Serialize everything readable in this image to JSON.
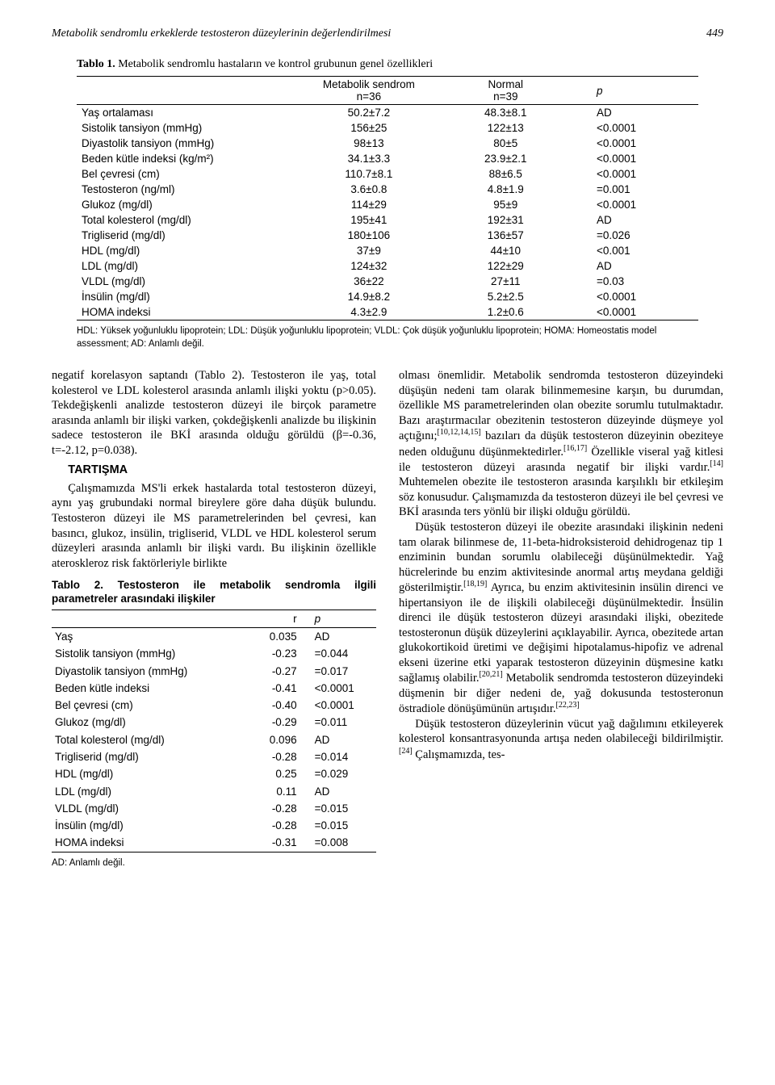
{
  "header": {
    "running_title": "Metabolik sendromlu erkeklerde testosteron düzeylerinin değerlendirilmesi",
    "page_number": "449"
  },
  "table1": {
    "title_prefix": "Tablo 1.",
    "title": "Metabolik sendromlu hastaların ve kontrol grubunun genel özellikleri",
    "head": {
      "col2_top": "Metabolik sendrom",
      "col2_sub": "n=36",
      "col3_top": "Normal",
      "col3_sub": "n=39",
      "col4": "p"
    },
    "rows": [
      {
        "label": "Yaş ortalaması",
        "a": "50.2±7.2",
        "b": "48.3±8.1",
        "p": "AD"
      },
      {
        "label": "Sistolik tansiyon (mmHg)",
        "a": "156±25",
        "b": "122±13",
        "p": "<0.0001"
      },
      {
        "label": "Diyastolik tansiyon (mmHg)",
        "a": "98±13",
        "b": "80±5",
        "p": "<0.0001"
      },
      {
        "label": "Beden kütle indeksi (kg/m²)",
        "a": "34.1±3.3",
        "b": "23.9±2.1",
        "p": "<0.0001"
      },
      {
        "label": "Bel çevresi (cm)",
        "a": "110.7±8.1",
        "b": "88±6.5",
        "p": "<0.0001"
      },
      {
        "label": "Testosteron (ng/ml)",
        "a": "3.6±0.8",
        "b": "4.8±1.9",
        "p": "=0.001"
      },
      {
        "label": "Glukoz (mg/dl)",
        "a": "114±29",
        "b": "95±9",
        "p": "<0.0001"
      },
      {
        "label": "Total kolesterol (mg/dl)",
        "a": "195±41",
        "b": "192±31",
        "p": "AD"
      },
      {
        "label": "Trigliserid (mg/dl)",
        "a": "180±106",
        "b": "136±57",
        "p": "=0.026"
      },
      {
        "label": "HDL (mg/dl)",
        "a": "37±9",
        "b": "44±10",
        "p": "<0.001"
      },
      {
        "label": "LDL (mg/dl)",
        "a": "124±32",
        "b": "122±29",
        "p": "AD"
      },
      {
        "label": "VLDL (mg/dl)",
        "a": "36±22",
        "b": "27±11",
        "p": "=0.03"
      },
      {
        "label": "İnsülin (mg/dl)",
        "a": "14.9±8.2",
        "b": "5.2±2.5",
        "p": "<0.0001"
      },
      {
        "label": "HOMA indeksi",
        "a": "4.3±2.9",
        "b": "1.2±0.6",
        "p": "<0.0001"
      }
    ],
    "footnote": "HDL: Yüksek yoğunluklu lipoprotein; LDL: Düşük yoğunluklu lipoprotein; VLDL: Çok düşük yoğunluklu lipoprotein; HOMA: Homeostatis model assessment; AD: Anlamlı değil."
  },
  "leftcol": {
    "p1": "negatif korelasyon saptandı (Tablo 2). Testosteron ile yaş, total kolesterol ve LDL kolesterol arasında anlamlı ilişki yoktu (p>0.05). Tekdeğişkenli analizde testosteron düzeyi ile birçok parametre arasında anlamlı bir ilişki varken, çokdeğişkenli analizde bu ilişkinin sadece testosteron ile BKİ arasında olduğu görüldü (β=-0.36, t=-2.12, p=0.038).",
    "tartisma_head": "TARTIŞMA",
    "p2": "Çalışmamızda MS'li erkek hastalarda total testosteron düzeyi, aynı yaş grubundaki normal bireylere göre daha düşük bulundu. Testosteron düzeyi ile MS parametrelerinden bel çevresi, kan basıncı, glukoz, insülin, trigliserid, VLDL ve HDL kolesterol serum düzeyleri arasında anlamlı bir ilişki vardı. Bu ilişkinin özellikle ateroskleroz risk faktörleriyle birlikte"
  },
  "table2": {
    "title": "Tablo 2. Testosteron ile metabolik sendromla ilgili parametreler arasındaki ilişkiler",
    "head": {
      "col2": "r",
      "col3": "p"
    },
    "rows": [
      {
        "label": "Yaş",
        "r": "0.035",
        "p": "AD"
      },
      {
        "label": "Sistolik tansiyon (mmHg)",
        "r": "-0.23",
        "p": "=0.044"
      },
      {
        "label": "Diyastolik tansiyon (mmHg)",
        "r": "-0.27",
        "p": "=0.017"
      },
      {
        "label": "Beden kütle indeksi",
        "r": "-0.41",
        "p": "<0.0001"
      },
      {
        "label": "Bel çevresi (cm)",
        "r": "-0.40",
        "p": "<0.0001"
      },
      {
        "label": "Glukoz (mg/dl)",
        "r": "-0.29",
        "p": "=0.011"
      },
      {
        "label": "Total kolesterol (mg/dl)",
        "r": "0.096",
        "p": "AD"
      },
      {
        "label": "Trigliserid (mg/dl)",
        "r": "-0.28",
        "p": "=0.014"
      },
      {
        "label": "HDL (mg/dl)",
        "r": "0.25",
        "p": "=0.029"
      },
      {
        "label": "LDL (mg/dl)",
        "r": "0.11",
        "p": "AD"
      },
      {
        "label": "VLDL (mg/dl)",
        "r": "-0.28",
        "p": "=0.015"
      },
      {
        "label": "İnsülin (mg/dl)",
        "r": "-0.28",
        "p": "=0.015"
      },
      {
        "label": "HOMA indeksi",
        "r": "-0.31",
        "p": "=0.008"
      }
    ],
    "footnote": "AD: Anlamlı değil."
  },
  "rightcol": {
    "p1a": "olması önemlidir. Metabolik sendromda testosteron düzeyindeki düşüşün nedeni tam olarak bilinmemesine karşın, bu durumdan, özellikle MS parametrelerinden olan obezite sorumlu tutulmaktadır. Bazı araştırmacılar obezitenin testosteron düzeyinde düşmeye yol açtığını;",
    "ref1": "[10,12,14,15]",
    "p1b": " bazıları da düşük testosteron düzeyinin obeziteye neden olduğunu düşünmektedirler.",
    "ref2": "[16,17]",
    "p1c": " Özellikle viseral yağ kitlesi ile testosteron düzeyi arasında negatif bir ilişki vardır.",
    "ref3": "[14]",
    "p1d": " Muhtemelen obezite ile testosteron arasında karşılıklı bir etkileşim söz konusudur. Çalışmamızda da testosteron düzeyi ile bel çevresi ve BKİ arasında ters yönlü bir ilişki olduğu görüldü.",
    "p2a": "Düşük testosteron düzeyi ile obezite arasındaki ilişkinin nedeni tam olarak bilinmese de, 11-beta-hidroksisteroid dehidrogenaz tip 1 enziminin bundan sorumlu olabileceği düşünülmektedir. Yağ hücrelerinde bu enzim aktivitesinde anormal artış meydana geldiği gösterilmiştir.",
    "ref4": "[18,19]",
    "p2b": " Ayrıca, bu enzim aktivitesinin insülin direnci ve hipertansiyon ile de ilişkili olabileceği düşünülmektedir. İnsülin direnci ile düşük testosteron düzeyi arasındaki ilişki, obezitede testosteronun düşük düzeylerini açıklayabilir. Ayrıca, obezitede artan glukokortikoid üretimi ve değişimi hipotalamus-hipofiz ve adrenal ekseni üzerine etki yaparak testosteron düzeyinin düşmesine katkı sağlamış olabilir.",
    "ref5": "[20,21]",
    "p2c": " Metabolik sendromda testosteron düzeyindeki düşmenin bir diğer nedeni de, yağ dokusunda testosteronun östradiole dönüşümünün artışıdır.",
    "ref6": "[22,23]",
    "p3a": "Düşük testosteron düzeylerinin vücut yağ dağılımını etkileyerek kolesterol konsantrasyonunda artışa neden olabileceği bildirilmiştir.",
    "ref7": "[24]",
    "p3b": " Çalışmamızda, tes-"
  }
}
